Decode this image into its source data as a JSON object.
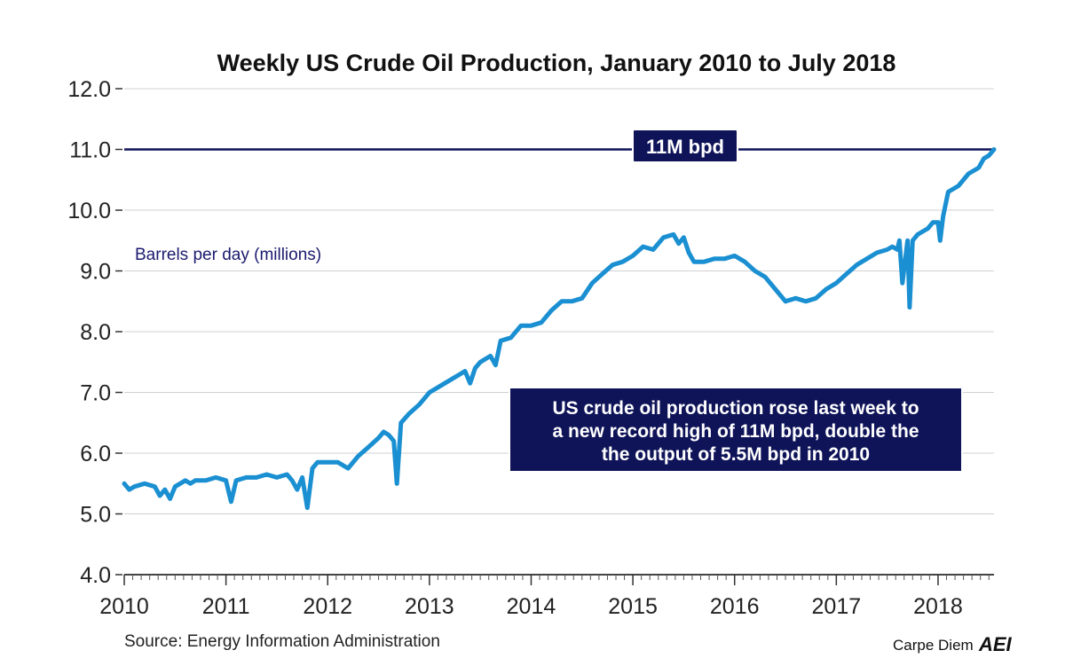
{
  "chart_data": {
    "type": "line",
    "title": "Weekly US Crude Oil Production, January 2010 to July 2018",
    "ylabel": "Barrels per day (millions)",
    "xlabel": "",
    "ylim": [
      4.0,
      12.0
    ],
    "xlim": [
      2010.0,
      2018.55
    ],
    "yticks": [
      "4.0",
      "5.0",
      "6.0",
      "7.0",
      "8.0",
      "9.0",
      "10.0",
      "11.0",
      "12.0"
    ],
    "xticks": [
      "2010",
      "2011",
      "2012",
      "2013",
      "2014",
      "2015",
      "2016",
      "2017",
      "2018"
    ],
    "grid": true,
    "reference_line": {
      "value": 11.0,
      "label": "11M bpd"
    },
    "annotation": {
      "lines": [
        "US crude oil production rose last week to",
        "a new record high of 11M bpd, double the",
        "the output of 5.5M bpd in 2010"
      ]
    },
    "series": [
      {
        "name": "Weekly US crude oil production",
        "x": [
          2010.0,
          2010.05,
          2010.1,
          2010.2,
          2010.3,
          2010.35,
          2010.4,
          2010.45,
          2010.5,
          2010.55,
          2010.6,
          2010.65,
          2010.7,
          2010.8,
          2010.9,
          2011.0,
          2011.05,
          2011.1,
          2011.2,
          2011.3,
          2011.4,
          2011.5,
          2011.6,
          2011.65,
          2011.7,
          2011.75,
          2011.8,
          2011.85,
          2011.9,
          2012.0,
          2012.1,
          2012.2,
          2012.3,
          2012.4,
          2012.5,
          2012.55,
          2012.6,
          2012.65,
          2012.68,
          2012.72,
          2012.8,
          2012.9,
          2013.0,
          2013.1,
          2013.2,
          2013.3,
          2013.35,
          2013.4,
          2013.45,
          2013.5,
          2013.6,
          2013.65,
          2013.7,
          2013.8,
          2013.9,
          2014.0,
          2014.1,
          2014.2,
          2014.3,
          2014.4,
          2014.5,
          2014.6,
          2014.7,
          2014.8,
          2014.9,
          2015.0,
          2015.1,
          2015.2,
          2015.3,
          2015.4,
          2015.45,
          2015.5,
          2015.55,
          2015.6,
          2015.7,
          2015.8,
          2015.9,
          2016.0,
          2016.1,
          2016.2,
          2016.3,
          2016.4,
          2016.5,
          2016.6,
          2016.7,
          2016.8,
          2016.9,
          2017.0,
          2017.1,
          2017.2,
          2017.3,
          2017.4,
          2017.5,
          2017.55,
          2017.6,
          2017.62,
          2017.65,
          2017.7,
          2017.72,
          2017.75,
          2017.8,
          2017.9,
          2017.95,
          2018.0,
          2018.02,
          2018.05,
          2018.1,
          2018.2,
          2018.3,
          2018.4,
          2018.45,
          2018.5,
          2018.55
        ],
        "y": [
          5.5,
          5.4,
          5.45,
          5.5,
          5.45,
          5.3,
          5.4,
          5.25,
          5.45,
          5.5,
          5.55,
          5.5,
          5.55,
          5.55,
          5.6,
          5.55,
          5.2,
          5.55,
          5.6,
          5.6,
          5.65,
          5.6,
          5.65,
          5.55,
          5.4,
          5.6,
          5.1,
          5.75,
          5.85,
          5.85,
          5.85,
          5.75,
          5.95,
          6.1,
          6.25,
          6.35,
          6.3,
          6.2,
          5.5,
          6.5,
          6.65,
          6.8,
          7.0,
          7.1,
          7.2,
          7.3,
          7.35,
          7.15,
          7.4,
          7.5,
          7.6,
          7.45,
          7.85,
          7.9,
          8.1,
          8.1,
          8.15,
          8.35,
          8.5,
          8.5,
          8.55,
          8.8,
          8.95,
          9.1,
          9.15,
          9.25,
          9.4,
          9.35,
          9.55,
          9.6,
          9.45,
          9.55,
          9.3,
          9.15,
          9.15,
          9.2,
          9.2,
          9.25,
          9.15,
          9.0,
          8.9,
          8.7,
          8.5,
          8.55,
          8.5,
          8.55,
          8.7,
          8.8,
          8.95,
          9.1,
          9.2,
          9.3,
          9.35,
          9.4,
          9.35,
          9.5,
          8.8,
          9.5,
          8.4,
          9.5,
          9.6,
          9.7,
          9.8,
          9.8,
          9.5,
          9.9,
          10.3,
          10.4,
          10.6,
          10.7,
          10.85,
          10.9,
          11.0
        ]
      }
    ]
  },
  "footer": {
    "source": "Source: Energy Information Administration",
    "brand": "Carpe Diem",
    "logo": "AEI"
  },
  "colors": {
    "line": "#1a8fd1",
    "reference_line": "#0f1459",
    "box_fill": "#0f1459",
    "grid": "#d0d0d0"
  }
}
